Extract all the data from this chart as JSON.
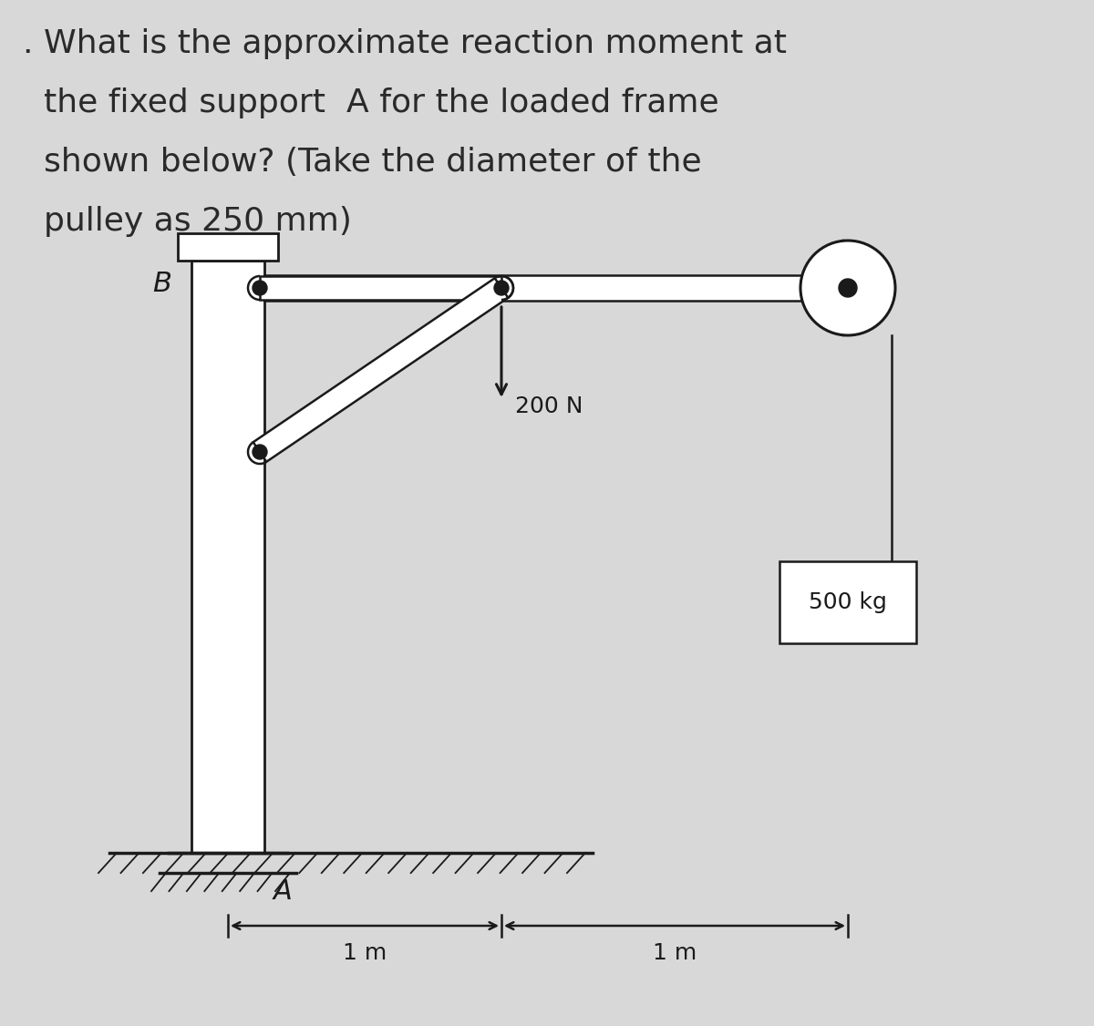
{
  "bg_color": "#d8d8d8",
  "text_color": "#2a2a2a",
  "line_color": "#1a1a1a",
  "title_lines": [
    ". What is the approximate reaction moment at",
    "  the fixed support  A for the loaded frame",
    "  shown below? (Take the diameter of the",
    "  pulley as 250 mm)"
  ],
  "title_fontsize": 26,
  "label_B": "B",
  "label_A": "A",
  "label_200N": "200 N",
  "label_500kg": "500 kg",
  "label_1m_left": "1 m",
  "label_1m_right": "1 m"
}
